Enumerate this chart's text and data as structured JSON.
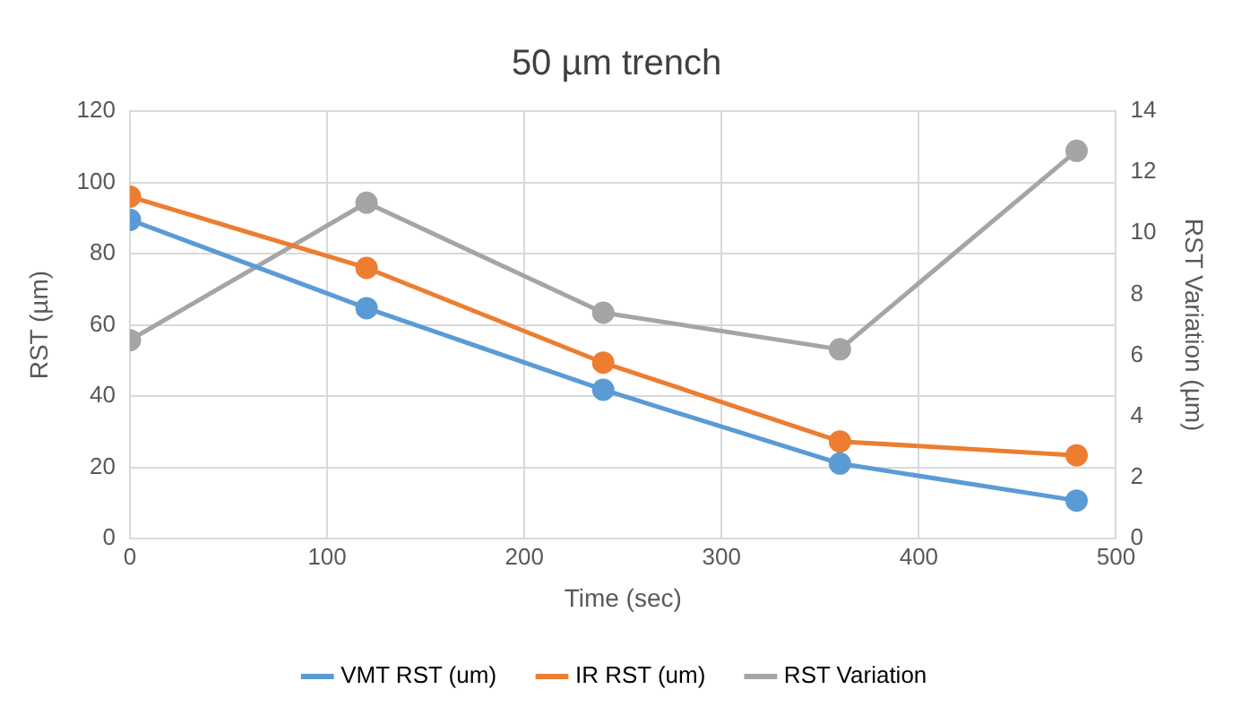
{
  "chart_data": {
    "type": "line",
    "title": "50 µm trench",
    "xlabel": "Time (sec)",
    "ylabel": "RST (µm)",
    "y2label": "RST Variation (µm)",
    "x": [
      0,
      120,
      240,
      360,
      480
    ],
    "series": [
      {
        "name": "VMT RST (um)",
        "color": "#5b9bd5",
        "values": [
          89.5,
          64.7,
          41.8,
          21.1,
          10.7
        ]
      },
      {
        "name": "IR RST (um)",
        "color": "#ed7d31",
        "values": [
          96,
          76,
          49.4,
          27.3,
          23.4
        ]
      },
      {
        "name": "RST Variation",
        "color": "#a5a5a5",
        "axis": "y2",
        "values": [
          6.5,
          11,
          7.4,
          6.2,
          12.7
        ]
      }
    ],
    "xlim": [
      0,
      500
    ],
    "xticks": [
      0,
      100,
      200,
      300,
      400,
      500
    ],
    "ylim": [
      0,
      120
    ],
    "yticks": [
      0,
      20,
      40,
      60,
      80,
      100,
      120
    ],
    "y2lim": [
      0,
      14
    ],
    "y2ticks": [
      0,
      2,
      4,
      6,
      8,
      10,
      12,
      14
    ],
    "grid": true,
    "legend": "bottom",
    "marker": "circle",
    "line_style": "solid"
  }
}
